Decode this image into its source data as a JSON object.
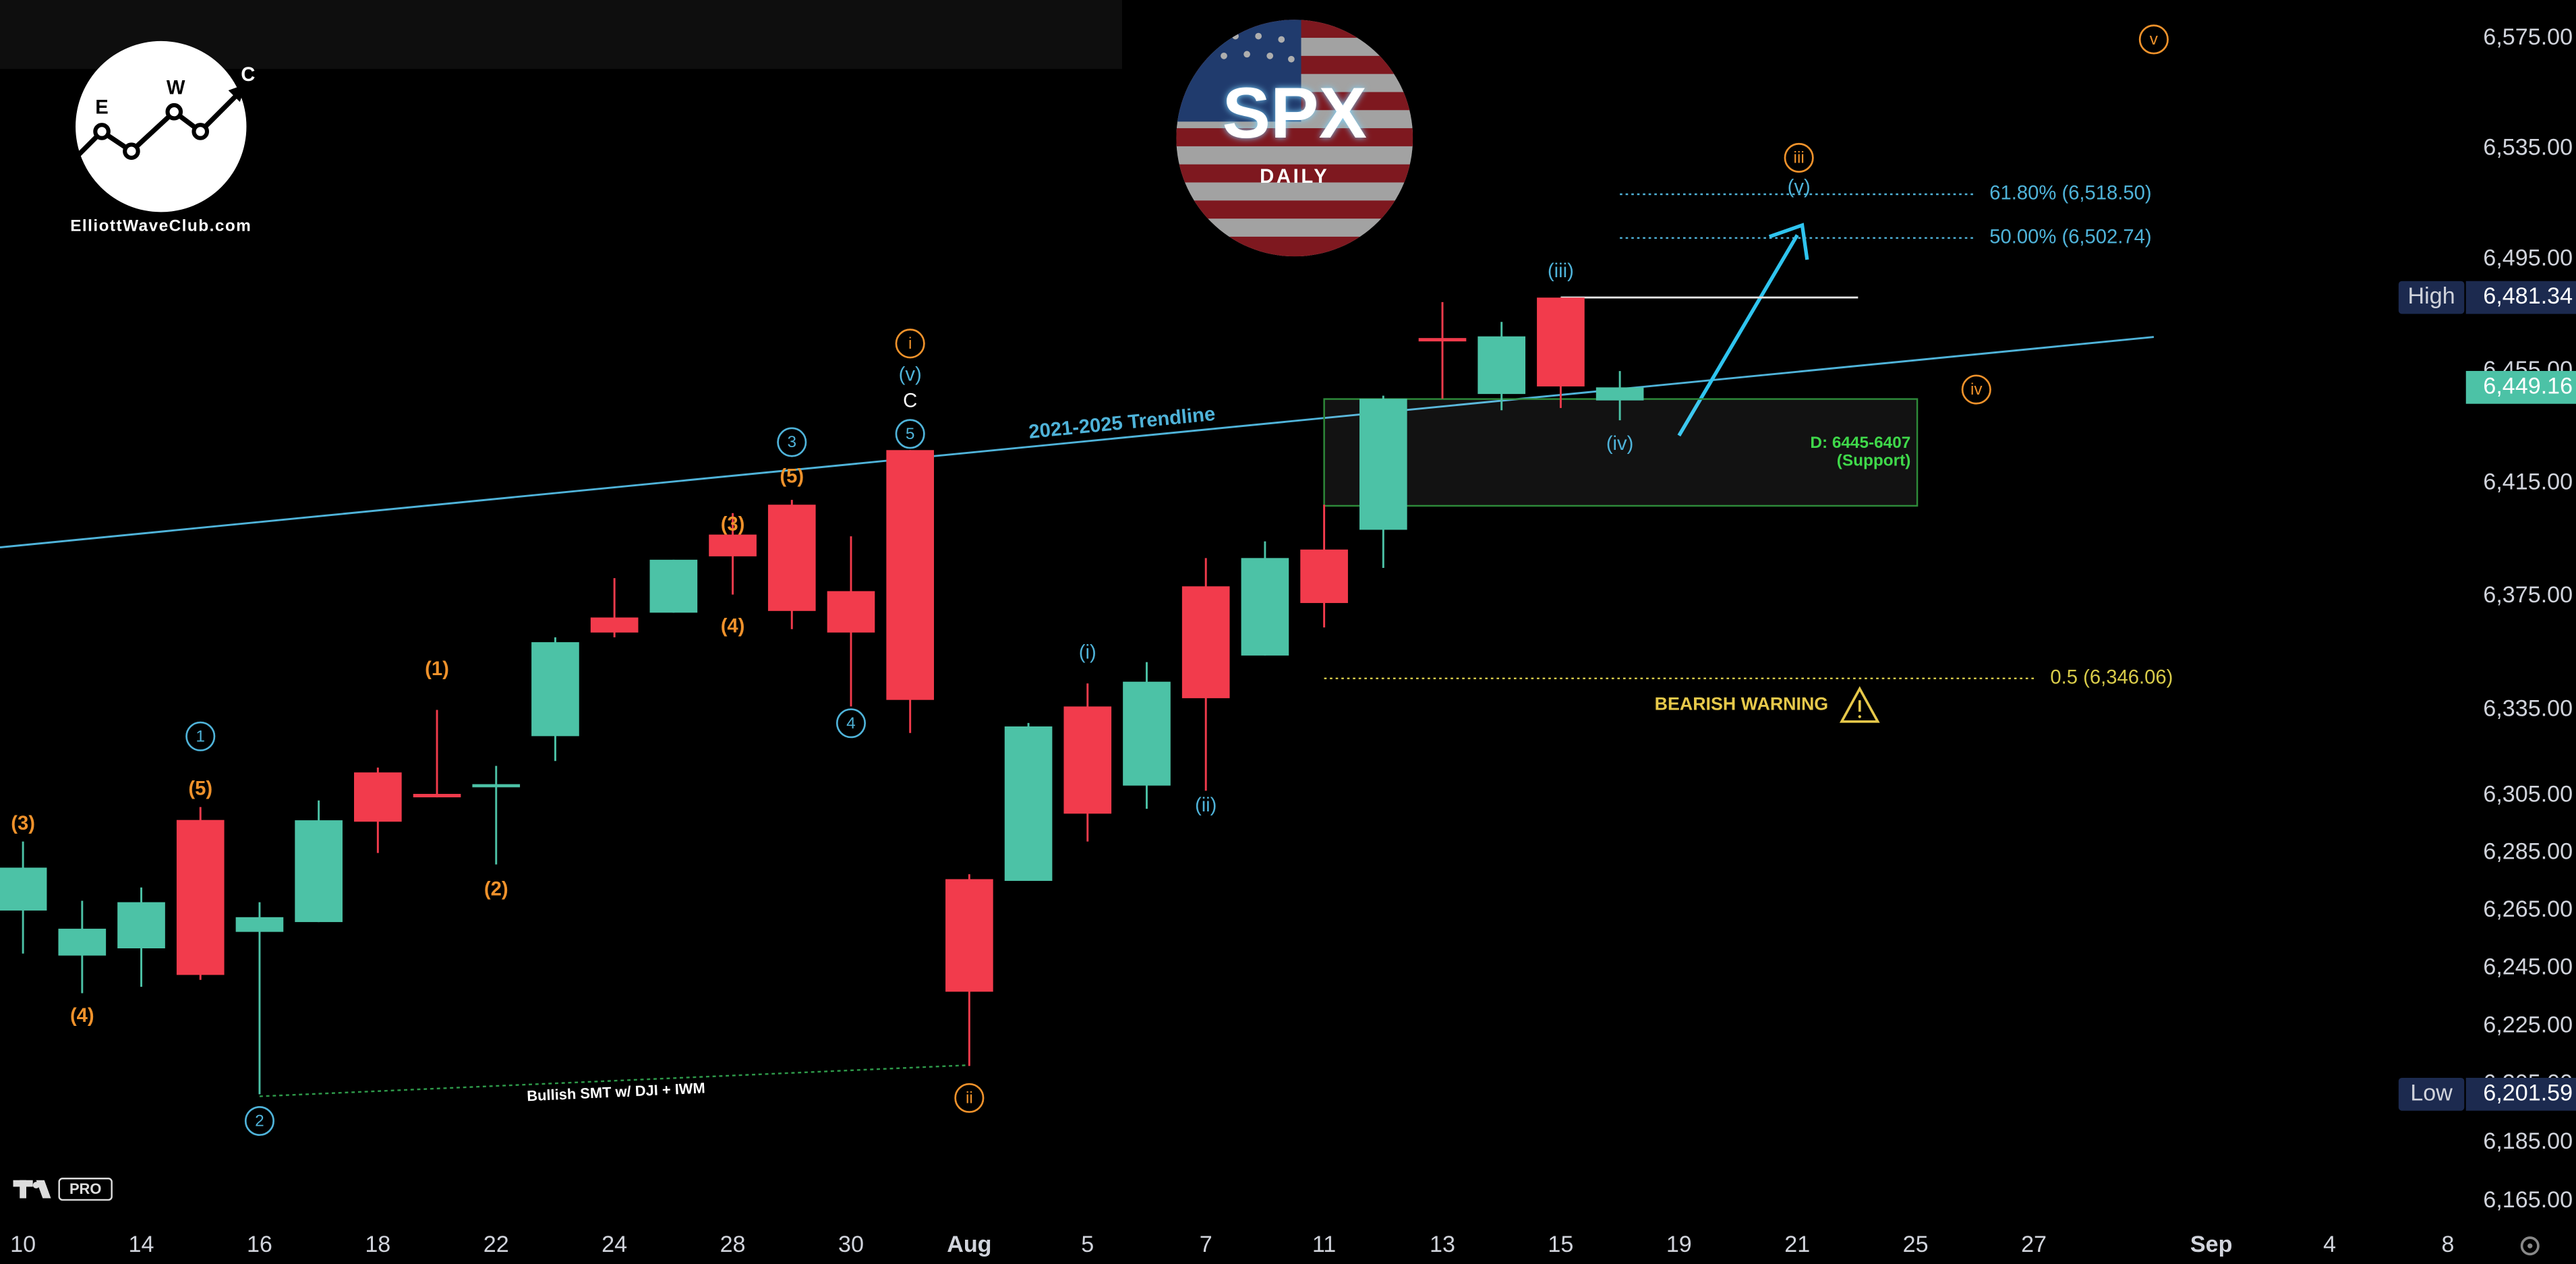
{
  "chart_data": {
    "type": "candlestick",
    "symbol": "SPX",
    "interval": "DAILY",
    "brand": "ElliottWaveClub.com",
    "brand_letters": [
      "E",
      "W",
      "C"
    ],
    "platform_badge": "PRO",
    "categories": [
      "10",
      null,
      "14",
      null,
      "16",
      null,
      "18",
      null,
      "22",
      null,
      "24",
      null,
      "28",
      null,
      "30",
      null,
      "Aug",
      null,
      "5",
      null,
      "7",
      null,
      "11",
      null,
      "13",
      null,
      "15",
      null,
      "19",
      null,
      "21",
      null,
      "25",
      null,
      "27",
      null,
      null,
      "Sep",
      null,
      "4",
      null,
      "8"
    ],
    "open": [
      6265,
      6249.4,
      6251.9,
      6296.5,
      6257.6,
      6261,
      6313.1,
      6305.6,
      6307.9,
      6325.8,
      6367.5,
      6369.2,
      6396.8,
      6407.4,
      6376.8,
      6426.8,
      6275.9,
      6275.3,
      6336.2,
      6308.5,
      6378.5,
      6354.1,
      6391.5,
      6398.5,
      6466.8,
      6446.8,
      6481.3,
      6444.5,
      null,
      null,
      null,
      null,
      null,
      null,
      null,
      null,
      null,
      null,
      null,
      null,
      null,
      null
    ],
    "high": [
      6289,
      6268.4,
      6273,
      6301,
      6267.9,
      6303.3,
      6314.8,
      6335,
      6315.4,
      6360.5,
      6381.4,
      6387.9,
      6404.4,
      6409.1,
      6396.2,
      6426.8,
      6277.6,
      6330.4,
      6344.3,
      6351.8,
      6388.5,
      6394.4,
      6407.4,
      6446.2,
      6479.7,
      6472.6,
      6481.34,
      6455,
      null,
      null,
      null,
      null,
      null,
      null,
      null,
      null,
      null,
      null,
      null,
      null,
      null,
      null
    ],
    "low": [
      6250.1,
      6236.4,
      6238.6,
      6241,
      6201.59,
      6261,
      6285,
      6304.4,
      6281,
      6317.1,
      6360.5,
      6369.2,
      6375.6,
      6363.4,
      6336.2,
      6326.9,
      6211.3,
      6275.3,
      6289,
      6300.4,
      6306.7,
      6354.1,
      6364,
      6385,
      6445.1,
      6441,
      6441.8,
      6437.4,
      null,
      null,
      null,
      null,
      null,
      null,
      null,
      null,
      null,
      null,
      null,
      null,
      null,
      null
    ],
    "close": [
      6279.9,
      6258.7,
      6267.9,
      6242.7,
      6262.7,
      6296.4,
      6295.9,
      6304.4,
      6309,
      6358.8,
      6362.2,
      6387.9,
      6389.1,
      6369.8,
      6362.2,
      6338.5,
      6236.9,
      6329.2,
      6298.7,
      6344.9,
      6339.1,
      6388.5,
      6372.6,
      6445.1,
      6465.6,
      6467.4,
      6449.5,
      6449.16,
      null,
      null,
      null,
      null,
      null,
      null,
      null,
      null,
      null,
      null,
      null,
      null,
      null,
      null
    ],
    "up_color": "#4cc2a6",
    "down_color": "#f23b4c",
    "log_scale": true,
    "ylim": [
      6157,
      6589
    ],
    "yticks": [
      {
        "value": 6575,
        "label": "6,575.00"
      },
      {
        "value": 6535,
        "label": "6,535.00"
      },
      {
        "value": 6495,
        "label": "6,495.00"
      },
      {
        "value": 6455,
        "label": "6,455.00"
      },
      {
        "value": 6415,
        "label": "6,415.00"
      },
      {
        "value": 6375,
        "label": "6,375.00"
      },
      {
        "value": 6335,
        "label": "6,335.00"
      },
      {
        "value": 6305,
        "label": "6,305.00"
      },
      {
        "value": 6285,
        "label": "6,285.00"
      },
      {
        "value": 6265,
        "label": "6,265.00"
      },
      {
        "value": 6245,
        "label": "6,245.00"
      },
      {
        "value": 6225,
        "label": "6,225.00"
      },
      {
        "value": 6205,
        "label": "6,205.00"
      },
      {
        "value": 6185,
        "label": "6,185.00"
      },
      {
        "value": 6165,
        "label": "6,165.00"
      }
    ],
    "high_marker": {
      "label": "High",
      "value": 6481.34,
      "value_label": "6,481.34"
    },
    "low_marker": {
      "label": "Low",
      "value": 6201.59,
      "value_label": "6,201.59"
    },
    "last_price_label": "6,449.16",
    "levels": [
      {
        "label": "61.80% (6,518.50)",
        "value": 6518.5,
        "color": "#4fb3d9"
      },
      {
        "label": "50.00% (6,502.74)",
        "value": 6502.74,
        "color": "#4fb3d9"
      },
      {
        "label": "0.5 (6,346.06)",
        "value": 6346.06,
        "color": "#d9cc4a"
      }
    ],
    "zone": {
      "label": "D: 6445-6407",
      "note": "(Support)",
      "top": 6445,
      "bottom": 6407
    },
    "trendline_label": "2021-2025 Trendline",
    "smt_label": "Bullish SMT w/ DJI + IWM",
    "warning_label": "BEARISH WARNING",
    "annotations": [
      "(3)",
      "(4)",
      "(5)",
      "1",
      "2",
      "(1)",
      "(2)",
      "(3)",
      "(4)",
      "3",
      "(5)",
      "4",
      "5",
      "i",
      "(v)",
      "C",
      "ii",
      "(i)",
      "(ii)",
      "(iii)",
      "(iv)",
      "iii",
      "(v)",
      "iv",
      "v"
    ]
  }
}
